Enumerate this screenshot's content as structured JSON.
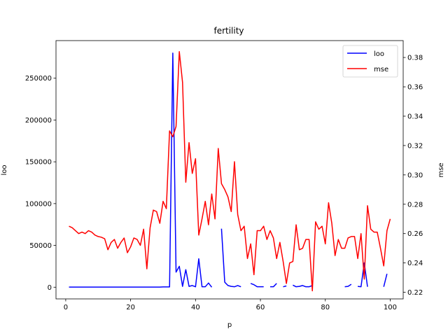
{
  "chart_data": {
    "type": "line",
    "title": "fertility",
    "xlabel": "p",
    "ylabel": "loo",
    "y2label": "mse",
    "xlim": [
      -3,
      104
    ],
    "ylim": [
      -14000,
      295000
    ],
    "y2lim": [
      0.2155,
      0.3915
    ],
    "x_ticks": [
      0,
      20,
      40,
      60,
      80,
      100
    ],
    "y_ticks": [
      0,
      50000,
      100000,
      150000,
      200000,
      250000
    ],
    "y2_ticks": [
      0.22,
      0.24,
      0.26,
      0.28,
      0.3,
      0.32,
      0.34,
      0.36,
      0.38
    ],
    "legend_position": "top-right",
    "series": [
      {
        "name": "loo",
        "axis": "left",
        "color": "#0000ff",
        "values": [
          [
            1,
            100
          ],
          [
            2,
            100
          ],
          [
            3,
            100
          ],
          [
            4,
            100
          ],
          [
            5,
            100
          ],
          [
            6,
            100
          ],
          [
            7,
            100
          ],
          [
            8,
            100
          ],
          [
            9,
            100
          ],
          [
            10,
            100
          ],
          [
            11,
            100
          ],
          [
            12,
            100
          ],
          [
            13,
            100
          ],
          [
            14,
            100
          ],
          [
            15,
            100
          ],
          [
            16,
            100
          ],
          [
            17,
            100
          ],
          [
            18,
            100
          ],
          [
            19,
            100
          ],
          [
            20,
            100
          ],
          [
            21,
            100
          ],
          [
            22,
            100
          ],
          [
            23,
            100
          ],
          [
            24,
            100
          ],
          [
            25,
            100
          ],
          [
            26,
            100
          ],
          [
            27,
            100
          ],
          [
            28,
            100
          ],
          [
            29,
            100
          ],
          [
            30,
            300
          ],
          [
            31,
            300
          ],
          [
            32,
            300
          ],
          [
            33,
            280000
          ],
          [
            34,
            18000
          ],
          [
            35,
            25000
          ],
          [
            36,
            1000
          ],
          [
            37,
            21000
          ],
          [
            38,
            1000
          ],
          [
            39,
            2000
          ],
          [
            40,
            500
          ],
          [
            41,
            34000
          ],
          [
            42,
            500
          ],
          [
            43,
            500
          ],
          [
            44,
            5000
          ],
          [
            45,
            0
          ],
          null,
          null,
          [
            48,
            70000
          ],
          [
            49,
            6000
          ],
          [
            50,
            2000
          ],
          [
            51,
            1000
          ],
          [
            52,
            500
          ],
          [
            53,
            2000
          ],
          [
            54,
            500
          ],
          null,
          null,
          [
            57,
            4500
          ],
          [
            58,
            3000
          ],
          [
            59,
            500
          ],
          [
            60,
            500
          ],
          [
            61,
            500
          ],
          null,
          [
            63,
            500
          ],
          [
            64,
            500
          ],
          [
            65,
            4500
          ],
          null,
          [
            67,
            500
          ],
          [
            68,
            1500
          ],
          null,
          [
            70,
            2500
          ],
          [
            71,
            500
          ],
          [
            72,
            1000
          ],
          [
            73,
            2000
          ],
          [
            74,
            500
          ],
          [
            75,
            500
          ],
          [
            76,
            2000
          ],
          null,
          null,
          null,
          null,
          null,
          null,
          null,
          null,
          null,
          [
            86,
            500
          ],
          [
            87,
            1000
          ],
          [
            88,
            3500
          ],
          null,
          [
            90,
            1000
          ],
          [
            91,
            500
          ],
          [
            92,
            29000
          ],
          [
            93,
            500
          ],
          null,
          null,
          null,
          null,
          [
            98,
            500
          ],
          [
            99,
            16000
          ]
        ]
      },
      {
        "name": "mse",
        "axis": "right",
        "color": "#ff0000",
        "values": [
          [
            1,
            0.265
          ],
          [
            2,
            0.264
          ],
          [
            3,
            0.262
          ],
          [
            4,
            0.26
          ],
          [
            5,
            0.261
          ],
          [
            6,
            0.26
          ],
          [
            7,
            0.262
          ],
          [
            8,
            0.261
          ],
          [
            9,
            0.259
          ],
          [
            10,
            0.258
          ],
          [
            11,
            0.2575
          ],
          [
            12,
            0.2565
          ],
          [
            13,
            0.249
          ],
          [
            14,
            0.254
          ],
          [
            15,
            0.256
          ],
          [
            16,
            0.25
          ],
          [
            17,
            0.254
          ],
          [
            18,
            0.257
          ],
          [
            19,
            0.247
          ],
          [
            20,
            0.251
          ],
          [
            21,
            0.257
          ],
          [
            22,
            0.256
          ],
          [
            23,
            0.252
          ],
          [
            24,
            0.263
          ],
          [
            25,
            0.236
          ],
          [
            26,
            0.264
          ],
          [
            27,
            0.276
          ],
          [
            28,
            0.275
          ],
          [
            29,
            0.267
          ],
          [
            30,
            0.282
          ],
          [
            31,
            0.277
          ],
          [
            32,
            0.33
          ],
          [
            33,
            0.326
          ],
          [
            34,
            0.333
          ],
          [
            35,
            0.384
          ],
          [
            36,
            0.363
          ],
          [
            37,
            0.295
          ],
          [
            38,
            0.322
          ],
          [
            39,
            0.301
          ],
          [
            40,
            0.311
          ],
          [
            41,
            0.259
          ],
          [
            42,
            0.27
          ],
          [
            43,
            0.282
          ],
          [
            44,
            0.266
          ],
          [
            45,
            0.287
          ],
          [
            46,
            0.27
          ],
          [
            47,
            0.318
          ],
          [
            48,
            0.294
          ],
          [
            49,
            0.29
          ],
          [
            50,
            0.285
          ],
          [
            51,
            0.275
          ],
          [
            52,
            0.309
          ],
          [
            53,
            0.273
          ],
          [
            54,
            0.262
          ],
          [
            55,
            0.265
          ],
          [
            56,
            0.243
          ],
          [
            57,
            0.253
          ],
          [
            58,
            0.232
          ],
          [
            59,
            0.262
          ],
          [
            60,
            0.262
          ],
          [
            61,
            0.265
          ],
          [
            62,
            0.256
          ],
          [
            63,
            0.262
          ],
          [
            64,
            0.257
          ],
          [
            65,
            0.243
          ],
          [
            66,
            0.254
          ],
          [
            67,
            0.241
          ],
          [
            68,
            0.226
          ],
          [
            69,
            0.24
          ],
          [
            70,
            0.241
          ],
          [
            71,
            0.266
          ],
          [
            72,
            0.249
          ],
          [
            73,
            0.25
          ],
          [
            74,
            0.256
          ],
          [
            75,
            0.256
          ],
          [
            76,
            0.221
          ],
          [
            77,
            0.268
          ],
          [
            78,
            0.263
          ],
          [
            79,
            0.265
          ],
          [
            80,
            0.253
          ],
          [
            81,
            0.281
          ],
          [
            82,
            0.267
          ],
          [
            83,
            0.245
          ],
          [
            84,
            0.256
          ],
          [
            85,
            0.25
          ],
          [
            86,
            0.25
          ],
          [
            87,
            0.257
          ],
          [
            88,
            0.258
          ],
          [
            89,
            0.258
          ],
          [
            90,
            0.243
          ],
          [
            91,
            0.26
          ],
          [
            92,
            0.229
          ],
          [
            93,
            0.279
          ],
          [
            94,
            0.263
          ],
          [
            95,
            0.261
          ],
          [
            96,
            0.261
          ],
          [
            97,
            0.25
          ],
          [
            98,
            0.238
          ],
          [
            99,
            0.262
          ],
          [
            100,
            0.27
          ]
        ]
      }
    ]
  }
}
